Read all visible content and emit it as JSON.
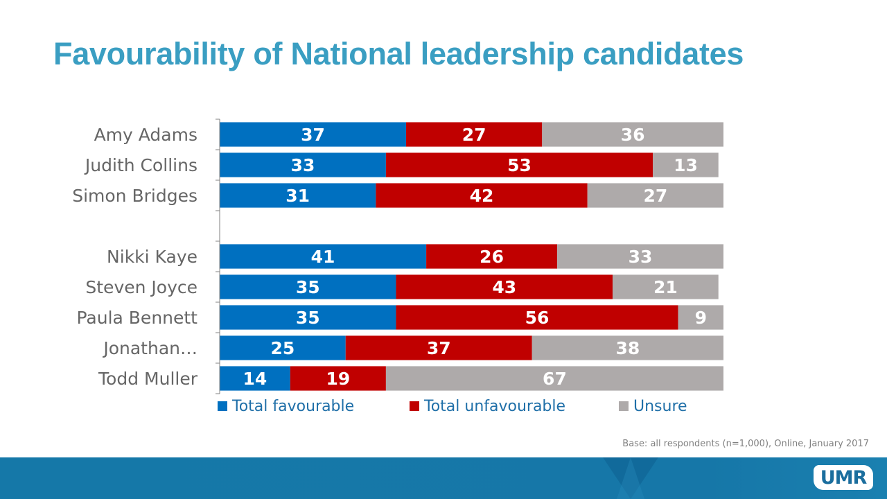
{
  "slide": {
    "title": "Favourability of National leadership candidates",
    "footnote": "Base: all respondents (n=1,000), Online, January 2017",
    "logo": {
      "text_before": "UM",
      "text_after": "R"
    }
  },
  "chart_data": {
    "type": "bar",
    "orientation": "horizontal",
    "stacked": true,
    "title": "Favourability of National leadership candidates",
    "xlabel": "",
    "ylabel": "",
    "xlim": [
      0,
      100
    ],
    "grid": false,
    "legend_position": "bottom",
    "categories": [
      "Amy Adams",
      "Judith Collins",
      "Simon Bridges",
      "",
      "Nikki Kaye",
      "Steven Joyce",
      "Paula Bennett",
      "Jonathan…",
      "Todd Muller"
    ],
    "series": [
      {
        "name": "Total favourable",
        "color": "#0070c0",
        "values": [
          37,
          33,
          31,
          null,
          41,
          35,
          35,
          25,
          14
        ]
      },
      {
        "name": "Total unfavourable",
        "color": "#c00000",
        "values": [
          27,
          53,
          42,
          null,
          26,
          43,
          56,
          37,
          19
        ]
      },
      {
        "name": "Unsure",
        "color": "#aeaaaa",
        "values": [
          36,
          13,
          27,
          null,
          33,
          21,
          9,
          38,
          67
        ]
      }
    ]
  }
}
